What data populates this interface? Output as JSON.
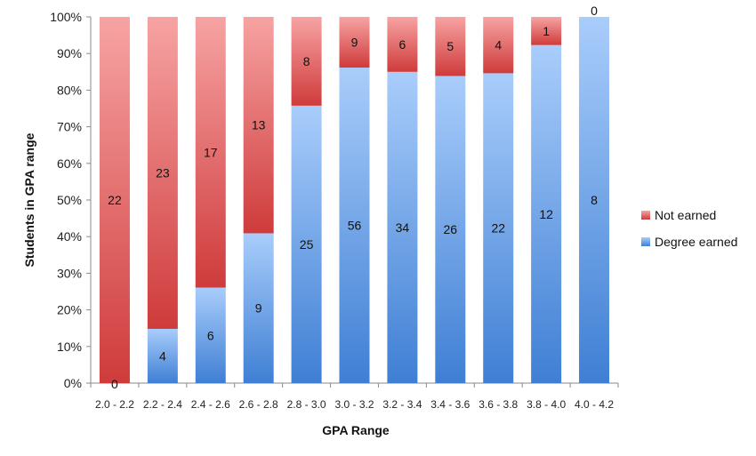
{
  "chart_data": {
    "type": "bar",
    "stacked": "percent",
    "title": "",
    "xlabel": "GPA Range",
    "ylabel": "Students in GPA range",
    "ylim": [
      0,
      100
    ],
    "yticks": [
      "0%",
      "10%",
      "20%",
      "30%",
      "40%",
      "50%",
      "60%",
      "70%",
      "80%",
      "90%",
      "100%"
    ],
    "categories": [
      "2.0 - 2.2",
      "2.2 - 2.4",
      "2.4 - 2.6",
      "2.6 - 2.8",
      "2.8 - 3.0",
      "3.0 - 3.2",
      "3.2 - 3.4",
      "3.4 - 3.6",
      "3.6 - 3.8",
      "3.8 - 4.0",
      "4.0 - 4.2"
    ],
    "series": [
      {
        "name": "Degree earned",
        "values": [
          0,
          4,
          6,
          9,
          25,
          56,
          34,
          26,
          22,
          12,
          8
        ],
        "color": "#4a86d8"
      },
      {
        "name": "Not earned",
        "values": [
          22,
          23,
          17,
          13,
          8,
          9,
          6,
          5,
          4,
          1,
          0
        ],
        "color": "#d84a4a"
      }
    ],
    "legend": {
      "position": "right",
      "order": [
        "Not earned",
        "Degree earned"
      ]
    },
    "grid": false
  }
}
